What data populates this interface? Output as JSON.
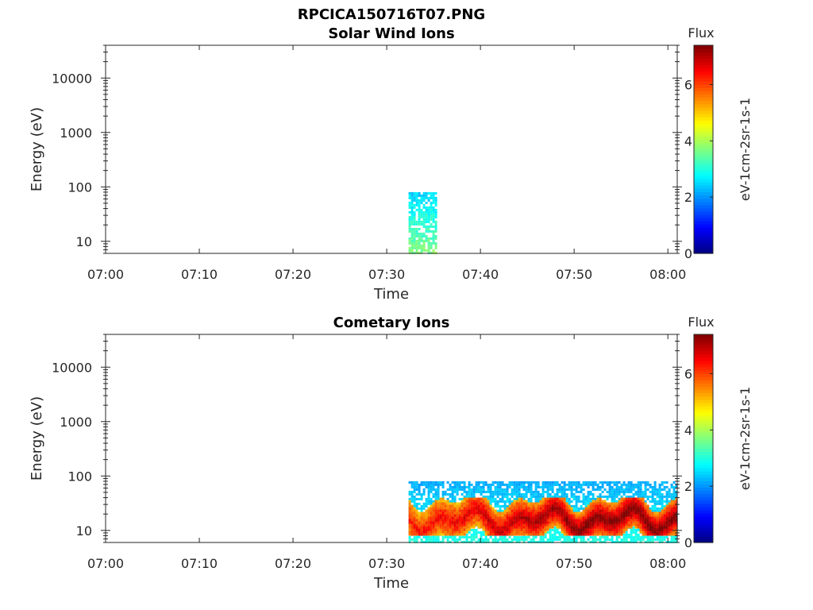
{
  "figure": {
    "title_line1": "RPCICA150716T07.PNG"
  },
  "chart_data": [
    {
      "type": "heatmap",
      "title": "Solar Wind Ions",
      "xlabel": "Time",
      "ylabel": "Energy (eV)",
      "x_range": [
        "07:00",
        "08:01"
      ],
      "x_ticks": [
        "07:00",
        "07:10",
        "07:20",
        "07:30",
        "07:40",
        "07:50",
        "08:00"
      ],
      "y_scale": "log",
      "y_range": [
        6,
        40000
      ],
      "y_ticks": [
        10,
        100,
        1000,
        10000
      ],
      "y_tick_labels": [
        "10",
        "100",
        "1000",
        "10000"
      ],
      "colorbar": {
        "title": "Flux",
        "label": "eV-1cm-2sr-1s-1",
        "range": [
          0,
          7.4
        ],
        "ticks": [
          0,
          2,
          4,
          6
        ],
        "tick_labels": [
          "0",
          "2",
          "4",
          "6"
        ],
        "colormap": "jet"
      },
      "data_regions": [
        {
          "t_start": "07:32:20",
          "t_end": "07:35:20",
          "e_min": 6,
          "e_max": 80,
          "flux_min": 2.2,
          "flux_max": 4.0
        }
      ],
      "grid": false
    },
    {
      "type": "heatmap",
      "title": "Cometary Ions",
      "xlabel": "Time",
      "ylabel": "Energy (eV)",
      "x_range": [
        "07:00",
        "08:01"
      ],
      "x_ticks": [
        "07:00",
        "07:10",
        "07:20",
        "07:30",
        "07:40",
        "07:50",
        "08:00"
      ],
      "y_scale": "log",
      "y_range": [
        6,
        40000
      ],
      "y_ticks": [
        10,
        100,
        1000,
        10000
      ],
      "y_tick_labels": [
        "10",
        "100",
        "1000",
        "10000"
      ],
      "colorbar": {
        "title": "Flux",
        "label": "eV-1cm-2sr-1s-1",
        "range": [
          0,
          7.4
        ],
        "ticks": [
          0,
          2,
          4,
          6
        ],
        "tick_labels": [
          "0",
          "2",
          "4",
          "6"
        ],
        "colormap": "jet"
      },
      "data_regions": [
        {
          "t_start": "07:32:20",
          "t_end": "08:01:00",
          "e_min": 6,
          "e_max": 80,
          "flux_min": 2.0,
          "flux_max": 3.2
        },
        {
          "t_start": "07:32:20",
          "t_end": "08:01:00",
          "e_min": 8,
          "e_max": 40,
          "flux_min": 4.5,
          "flux_max": 7.2
        }
      ],
      "grid": false
    }
  ]
}
